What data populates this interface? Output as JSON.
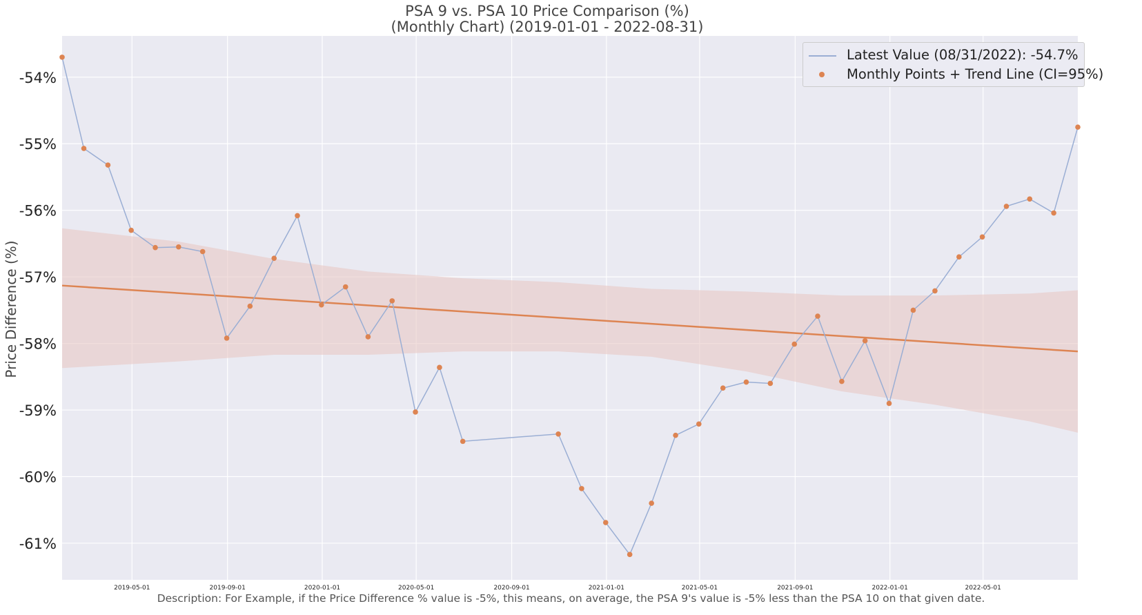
{
  "title_line1": "PSA 9 vs. PSA 10 Price Comparison (%)",
  "title_line2": "(Monthly Chart) (2019-01-01 - 2022-08-31)",
  "description": "Description: For Example, if the Price Difference % value is -5%, this means, on average, the PSA 9's value is -5% less than the PSA 10 on that given date.",
  "colors": {
    "background": "#eaeaf2",
    "grid": "#ffffff",
    "line": "#9aaed4",
    "points": "#dd8452",
    "trend": "#dd8452",
    "band": "#e7c8c4"
  },
  "chart_data": {
    "type": "line",
    "ylabel": "Price Difference (%)",
    "xlabel": "",
    "ylim": [
      -61.55,
      -53.38
    ],
    "xlim": [
      "2019-01-31",
      "2022-08-31"
    ],
    "y_ticks": [
      -54,
      -55,
      -56,
      -57,
      -58,
      -59,
      -60,
      -61
    ],
    "y_tick_labels": [
      "-54%",
      "-55%",
      "-56%",
      "-57%",
      "-58%",
      "-59%",
      "-60%",
      "-61%"
    ],
    "x_ticks": [
      "2019-05-01",
      "2019-09-01",
      "2020-01-01",
      "2020-05-01",
      "2020-09-01",
      "2021-01-01",
      "2021-05-01",
      "2021-09-01",
      "2022-01-01",
      "2022-05-01"
    ],
    "grid": true,
    "legend_position": "top-right",
    "legend": [
      "Latest Value (08/31/2022): -54.7%",
      "Monthly Points + Trend Line (CI=95%)"
    ],
    "series": [
      {
        "name": "Latest Value (08/31/2022): -54.7%",
        "kind": "line",
        "x": [
          "2019-01-31",
          "2019-02-28",
          "2019-03-31",
          "2019-04-30",
          "2019-05-31",
          "2019-06-30",
          "2019-07-31",
          "2019-08-31",
          "2019-09-30",
          "2019-10-31",
          "2019-11-30",
          "2019-12-31",
          "2020-01-31",
          "2020-02-29",
          "2020-03-31",
          "2020-04-30",
          "2020-05-31",
          "2020-06-30",
          "2020-10-31",
          "2020-11-30",
          "2020-12-31",
          "2021-01-31",
          "2021-02-28",
          "2021-03-31",
          "2021-04-30",
          "2021-05-31",
          "2021-06-30",
          "2021-07-31",
          "2021-08-31",
          "2021-09-30",
          "2021-10-31",
          "2021-11-30",
          "2021-12-31",
          "2022-01-31",
          "2022-02-28",
          "2022-03-31",
          "2022-04-30",
          "2022-05-31",
          "2022-06-30",
          "2022-07-31",
          "2022-08-31"
        ],
        "y": [
          -53.7,
          -55.07,
          -55.32,
          -56.3,
          -56.56,
          -56.55,
          -56.62,
          -57.92,
          -57.44,
          -56.72,
          -56.08,
          -57.42,
          -57.15,
          -57.9,
          -57.36,
          -59.03,
          -58.36,
          -59.47,
          -59.36,
          -60.18,
          -60.69,
          -61.17,
          -60.4,
          -59.38,
          -59.21,
          -58.67,
          -58.58,
          -58.6,
          -58.01,
          -57.59,
          -58.57,
          -57.96,
          -58.9,
          -57.5,
          -57.21,
          -56.7,
          -56.4,
          -55.94,
          -55.83,
          -56.04,
          -54.75
        ]
      },
      {
        "name": "Monthly Points + Trend Line (CI=95%)",
        "kind": "scatter+trend",
        "trend": {
          "x": [
            "2019-01-31",
            "2022-08-31"
          ],
          "y": [
            -57.13,
            -58.12
          ]
        },
        "ci_band": {
          "x": [
            "2019-01-31",
            "2019-06-30",
            "2019-10-31",
            "2020-02-29",
            "2020-06-30",
            "2020-10-31",
            "2021-02-28",
            "2021-06-30",
            "2021-10-31",
            "2022-02-28",
            "2022-06-30",
            "2022-08-31"
          ],
          "upper": [
            -56.27,
            -56.47,
            -56.73,
            -56.92,
            -57.02,
            -57.08,
            -57.18,
            -57.22,
            -57.28,
            -57.28,
            -57.25,
            -57.2
          ],
          "lower": [
            -58.37,
            -58.27,
            -58.17,
            -58.17,
            -58.12,
            -58.12,
            -58.2,
            -58.42,
            -58.72,
            -58.92,
            -59.17,
            -59.34
          ]
        }
      }
    ]
  }
}
